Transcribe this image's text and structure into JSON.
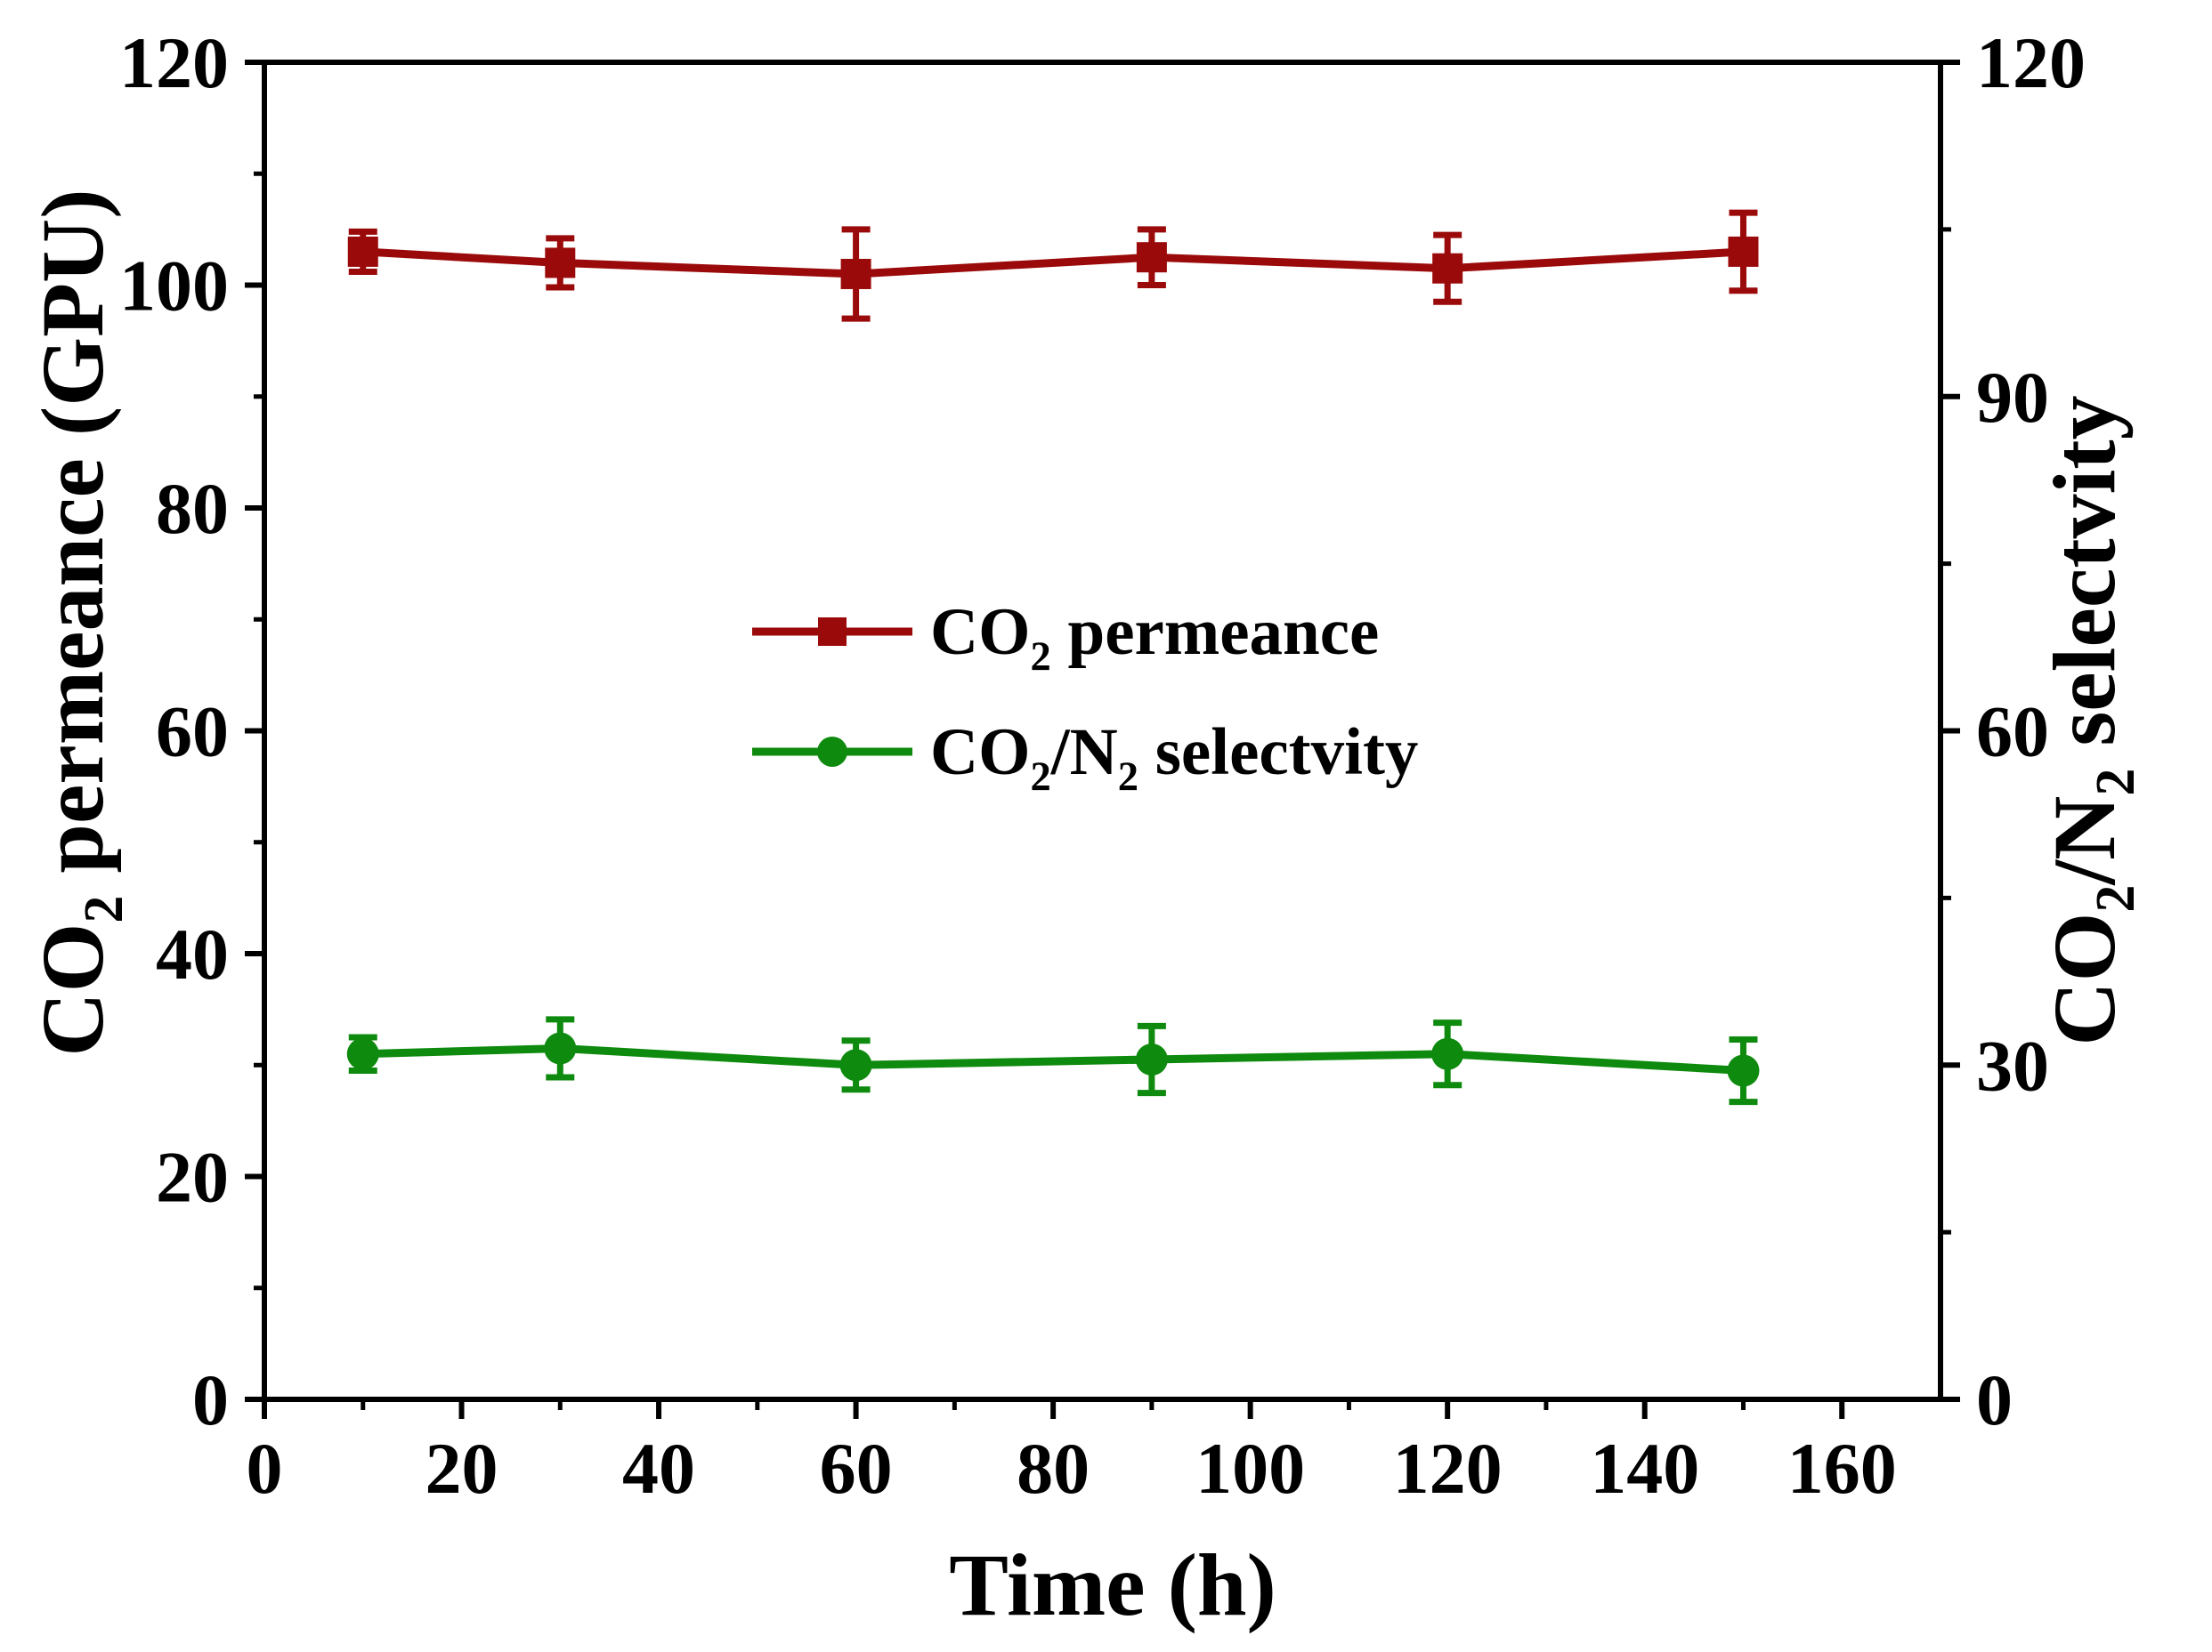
{
  "chart_data": {
    "type": "line",
    "title": "",
    "xlabel": "Time (h)",
    "ylabel_left": {
      "main": "CO",
      "sub": "2",
      "rest": " permeance (GPU)"
    },
    "ylabel_right": {
      "p1": "CO",
      "s1": "2",
      "p2": "/N",
      "s2": "2",
      "p3": " selectvity"
    },
    "xlim": [
      0,
      170
    ],
    "ylim_left": [
      0,
      120
    ],
    "ylim_right": [
      0,
      120
    ],
    "x_ticks": [
      "0",
      "20",
      "40",
      "60",
      "80",
      "100",
      "120",
      "140",
      "160"
    ],
    "y_left_ticks": [
      "0",
      "20",
      "40",
      "60",
      "80",
      "100",
      "120"
    ],
    "y_right_ticks": [
      "0",
      "30",
      "60",
      "90",
      "120"
    ],
    "series": [
      {
        "name": "CO2 permeance",
        "legend": {
          "main": "CO",
          "sub": "2",
          "rest": " permeance"
        },
        "axis": "left",
        "marker": "square",
        "color": "#9b0a0a",
        "x": [
          10,
          30,
          60,
          90,
          120,
          150
        ],
        "values": [
          103,
          102,
          101,
          102.5,
          101.5,
          103
        ],
        "errors": [
          1.8,
          2.2,
          4.0,
          2.5,
          3.0,
          3.5
        ]
      },
      {
        "name": "CO2/N2 selectvity",
        "legend": {
          "p1": "CO",
          "s1": "2",
          "p2": "/N",
          "s2": "2",
          "p3": " selectvity"
        },
        "axis": "right",
        "marker": "circle",
        "color": "#0e8a0e",
        "x": [
          10,
          30,
          60,
          90,
          120,
          150
        ],
        "values": [
          31,
          31.5,
          30,
          30.5,
          31,
          29.5
        ],
        "errors": [
          1.5,
          2.6,
          2.2,
          3.0,
          2.8,
          2.8
        ]
      }
    ]
  }
}
